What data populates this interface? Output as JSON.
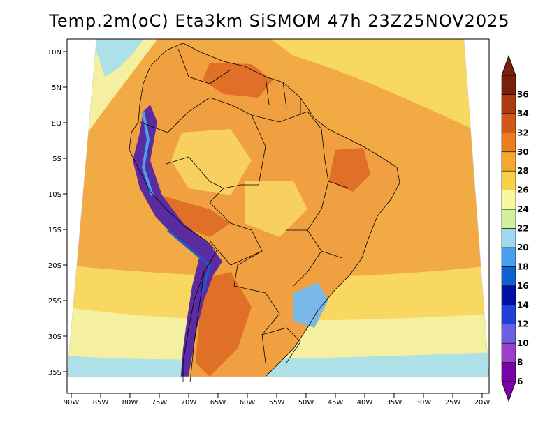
{
  "title": "Temp.2m(oC) Eta3km SiSMOM 47h 23Z25NOV2025",
  "lat_labels": [
    "10N",
    "5N",
    "EQ",
    "5S",
    "10S",
    "15S",
    "20S",
    "25S",
    "30S",
    "35S"
  ],
  "lon_labels": [
    "90W",
    "85W",
    "80W",
    "75W",
    "70W",
    "65W",
    "60W",
    "55W",
    "50W",
    "45W",
    "40W",
    "35W",
    "30W",
    "25W",
    "20W"
  ],
  "colorbar": {
    "labels": [
      "6",
      "8",
      "10",
      "12",
      "14",
      "16",
      "18",
      "20",
      "22",
      "24",
      "26",
      "28",
      "30",
      "32",
      "34",
      "36"
    ],
    "colors": [
      "#7a00a8",
      "#9a40c8",
      "#6a60e0",
      "#2040d8",
      "#0010a0",
      "#1060d0",
      "#4aa0f0",
      "#a0d8f0",
      "#d0f0a0",
      "#f8f8a0",
      "#f8d048",
      "#f4a830",
      "#ec7c20",
      "#d05818",
      "#a83c10",
      "#78200c"
    ]
  },
  "map_colors": {
    "warm_ocean": "#f2ab44",
    "mild_ocean": "#f8d860",
    "cool_ocean": "#f4f0a0",
    "cold_ocean": "#aee0e8",
    "land_warm": "#f0a040",
    "land_hot": "#e07028",
    "andes_cold": "#5a2ca0"
  }
}
